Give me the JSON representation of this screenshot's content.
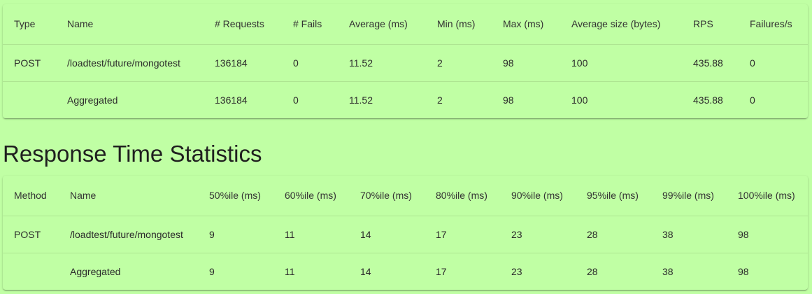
{
  "request_stats": {
    "headers": [
      "Type",
      "Name",
      "# Requests",
      "# Fails",
      "Average (ms)",
      "Min (ms)",
      "Max (ms)",
      "Average size (bytes)",
      "RPS",
      "Failures/s"
    ],
    "rows": [
      [
        "POST",
        "/loadtest/future/mongotest",
        "136184",
        "0",
        "11.52",
        "2",
        "98",
        "100",
        "435.88",
        "0"
      ],
      [
        "",
        "Aggregated",
        "136184",
        "0",
        "11.52",
        "2",
        "98",
        "100",
        "435.88",
        "0"
      ]
    ]
  },
  "response_time": {
    "title": "Response Time Statistics",
    "headers": [
      "Method",
      "Name",
      "50%ile (ms)",
      "60%ile (ms)",
      "70%ile (ms)",
      "80%ile (ms)",
      "90%ile (ms)",
      "95%ile (ms)",
      "99%ile (ms)",
      "100%ile (ms)"
    ],
    "rows": [
      [
        "POST",
        "/loadtest/future/mongotest",
        "9",
        "11",
        "14",
        "17",
        "23",
        "28",
        "38",
        "98"
      ],
      [
        "",
        "Aggregated",
        "9",
        "11",
        "14",
        "17",
        "23",
        "28",
        "38",
        "98"
      ]
    ]
  }
}
